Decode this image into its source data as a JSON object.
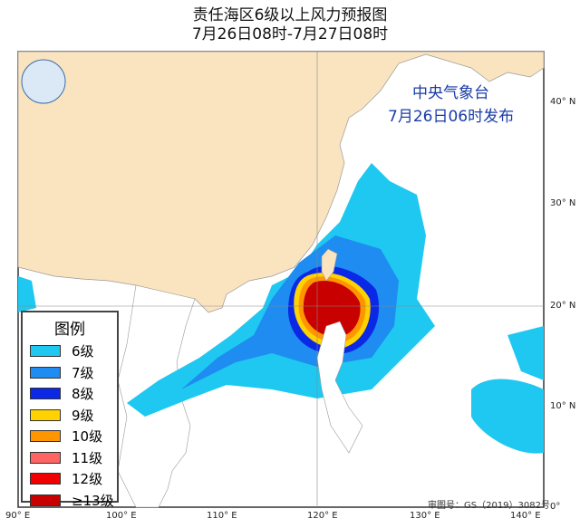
{
  "title": {
    "line1": "责任海区6级以上风力预报图",
    "line2": "7月26日08时-7月27日08时"
  },
  "issuer": {
    "name": "中央气象台",
    "time": "7月26日06时发布"
  },
  "longitude_labels": [
    "90° E",
    "100° E",
    "110° E",
    "120° E",
    "130° E",
    "140° E"
  ],
  "latitude_labels": [
    "40° N",
    "30° N",
    "20° N",
    "10° N",
    "0°"
  ],
  "legend": {
    "title": "图例",
    "items": [
      {
        "label": "6级",
        "color": "#1ec8f0"
      },
      {
        "label": "7级",
        "color": "#1e8cf0"
      },
      {
        "label": "8级",
        "color": "#0a28e6"
      },
      {
        "label": "9级",
        "color": "#ffd200"
      },
      {
        "label": "10级",
        "color": "#ff9600"
      },
      {
        "label": "11级",
        "color": "#ff6464"
      },
      {
        "label": "12级",
        "color": "#f00000"
      },
      {
        "label": "≥13级",
        "color": "#c80000"
      }
    ]
  },
  "approval_number": "审图号：GS（2019）3082号",
  "colors": {
    "land": "#fae4c0",
    "sea": "#ffffff"
  }
}
